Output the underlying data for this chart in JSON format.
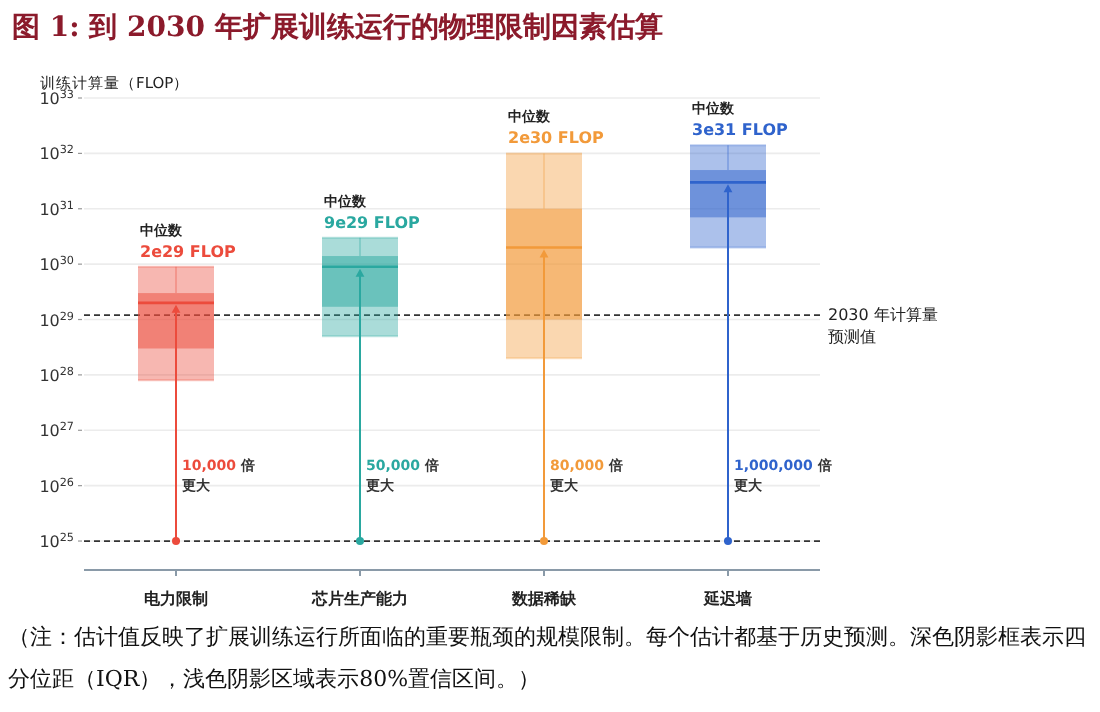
{
  "chart_data": {
    "type": "box",
    "title": "图 1: 到 2030 年扩展训练运行的物理限制因素估算",
    "ylabel": "训练计算量（FLOP）",
    "categories": [
      "电力限制",
      "芯片生产能力",
      "数据稀缺",
      "延迟墙"
    ],
    "boxes": [
      {
        "low": 8e+27,
        "q1": 3e+28,
        "median": 2e+29,
        "q3": 3e+29,
        "high": 9e+29
      },
      {
        "low": 5e+28,
        "q1": 1.7e+29,
        "median": 9e+29,
        "q3": 1.4e+30,
        "high": 3e+30
      },
      {
        "low": 2e+28,
        "q1": 1e+29,
        "median": 2e+30,
        "q3": 1e+31,
        "high": 1e+32
      },
      {
        "low": 2e+30,
        "q1": 7e+30,
        "median": 3e+31,
        "q3": 5e+31,
        "high": 1.4e+32
      }
    ],
    "colors": [
      "#ec4b3c",
      "#2aa8a0",
      "#f29a3a",
      "#2f63cc"
    ],
    "value_labels": [
      "2e29 FLOP",
      "9e29 FLOP",
      "2e30 FLOP",
      "3e31 FLOP"
    ],
    "log": true,
    "ylim": [
      3e+24,
      1e+33
    ],
    "yticks": [
      {
        "value": 1e+25,
        "label": "10$^{25}$"
      },
      {
        "value": 1e+26,
        "label": "10$^{26}$"
      },
      {
        "value": 1e+27,
        "label": "10$^{27}$"
      },
      {
        "value": 1e+28,
        "label": "10$^{28}$"
      },
      {
        "value": 1e+29,
        "label": "10$^{29}$"
      },
      {
        "value": 1e+30,
        "label": "10$^{30}$"
      },
      {
        "value": 1e+31,
        "label": "10$^{31}$"
      },
      {
        "value": 1e+32,
        "label": "10$^{32}$"
      },
      {
        "value": 1e+33,
        "label": "10$^{33}$"
      }
    ],
    "grid": "y",
    "ref_lines": [
      {
        "axis": "y",
        "value": 1.2e+29,
        "label": "2030 年计算量预测值",
        "line_style": "dashed"
      },
      {
        "axis": "y",
        "value": 1e+25,
        "label": null,
        "line_style": "dashed"
      }
    ],
    "annotations": [
      "中位数",
      "中位数",
      "中位数",
      "中位数",
      "10,000 倍更大",
      "50,000 倍更大",
      "80,000 倍更大",
      "1,000,000 倍更大",
      "（注：估计值反映了扩展训练运行所面临的重要瓶颈的规模限制。每个估计都基于历史预测。深色阴影框表示四分位距（IQR），浅色阴影区域表示80%置信区间。）"
    ],
    "tick_labels": "y"
  }
}
